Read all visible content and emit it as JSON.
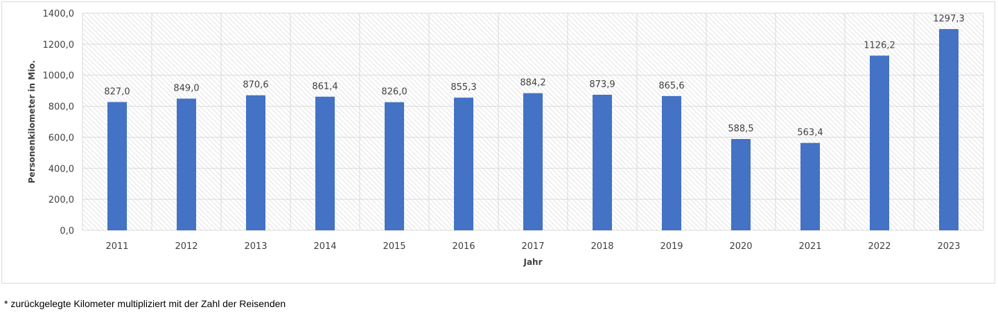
{
  "chart_data": {
    "type": "bar",
    "categories": [
      "2011",
      "2012",
      "2013",
      "2014",
      "2015",
      "2016",
      "2017",
      "2018",
      "2019",
      "2020",
      "2021",
      "2022",
      "2023"
    ],
    "values": [
      827.0,
      849.0,
      870.6,
      861.4,
      826.0,
      855.3,
      884.2,
      873.9,
      865.6,
      588.5,
      563.4,
      1126.2,
      1297.3
    ],
    "value_labels": [
      "827,0",
      "849,0",
      "870,6",
      "861,4",
      "826,0",
      "855,3",
      "884,2",
      "873,9",
      "865,6",
      "588,5",
      "563,4",
      "1126,2",
      "1297,3"
    ],
    "y_ticks": [
      0,
      200,
      400,
      600,
      800,
      1000,
      1200,
      1400
    ],
    "y_tick_labels": [
      "0,0",
      "200,0",
      "400,0",
      "600,0",
      "800,0",
      "1000,0",
      "1200,0",
      "1400,0"
    ],
    "ylim": [
      0,
      1400
    ],
    "xlabel": "Jahr",
    "ylabel": "Personenkilometer in Mio.",
    "grid": true,
    "bar_color": "#4472c4",
    "plot_background": "hatched-light-gray"
  },
  "footnote": "* zurückgelegte Kilometer multipliziert mit der Zahl der Reisenden"
}
